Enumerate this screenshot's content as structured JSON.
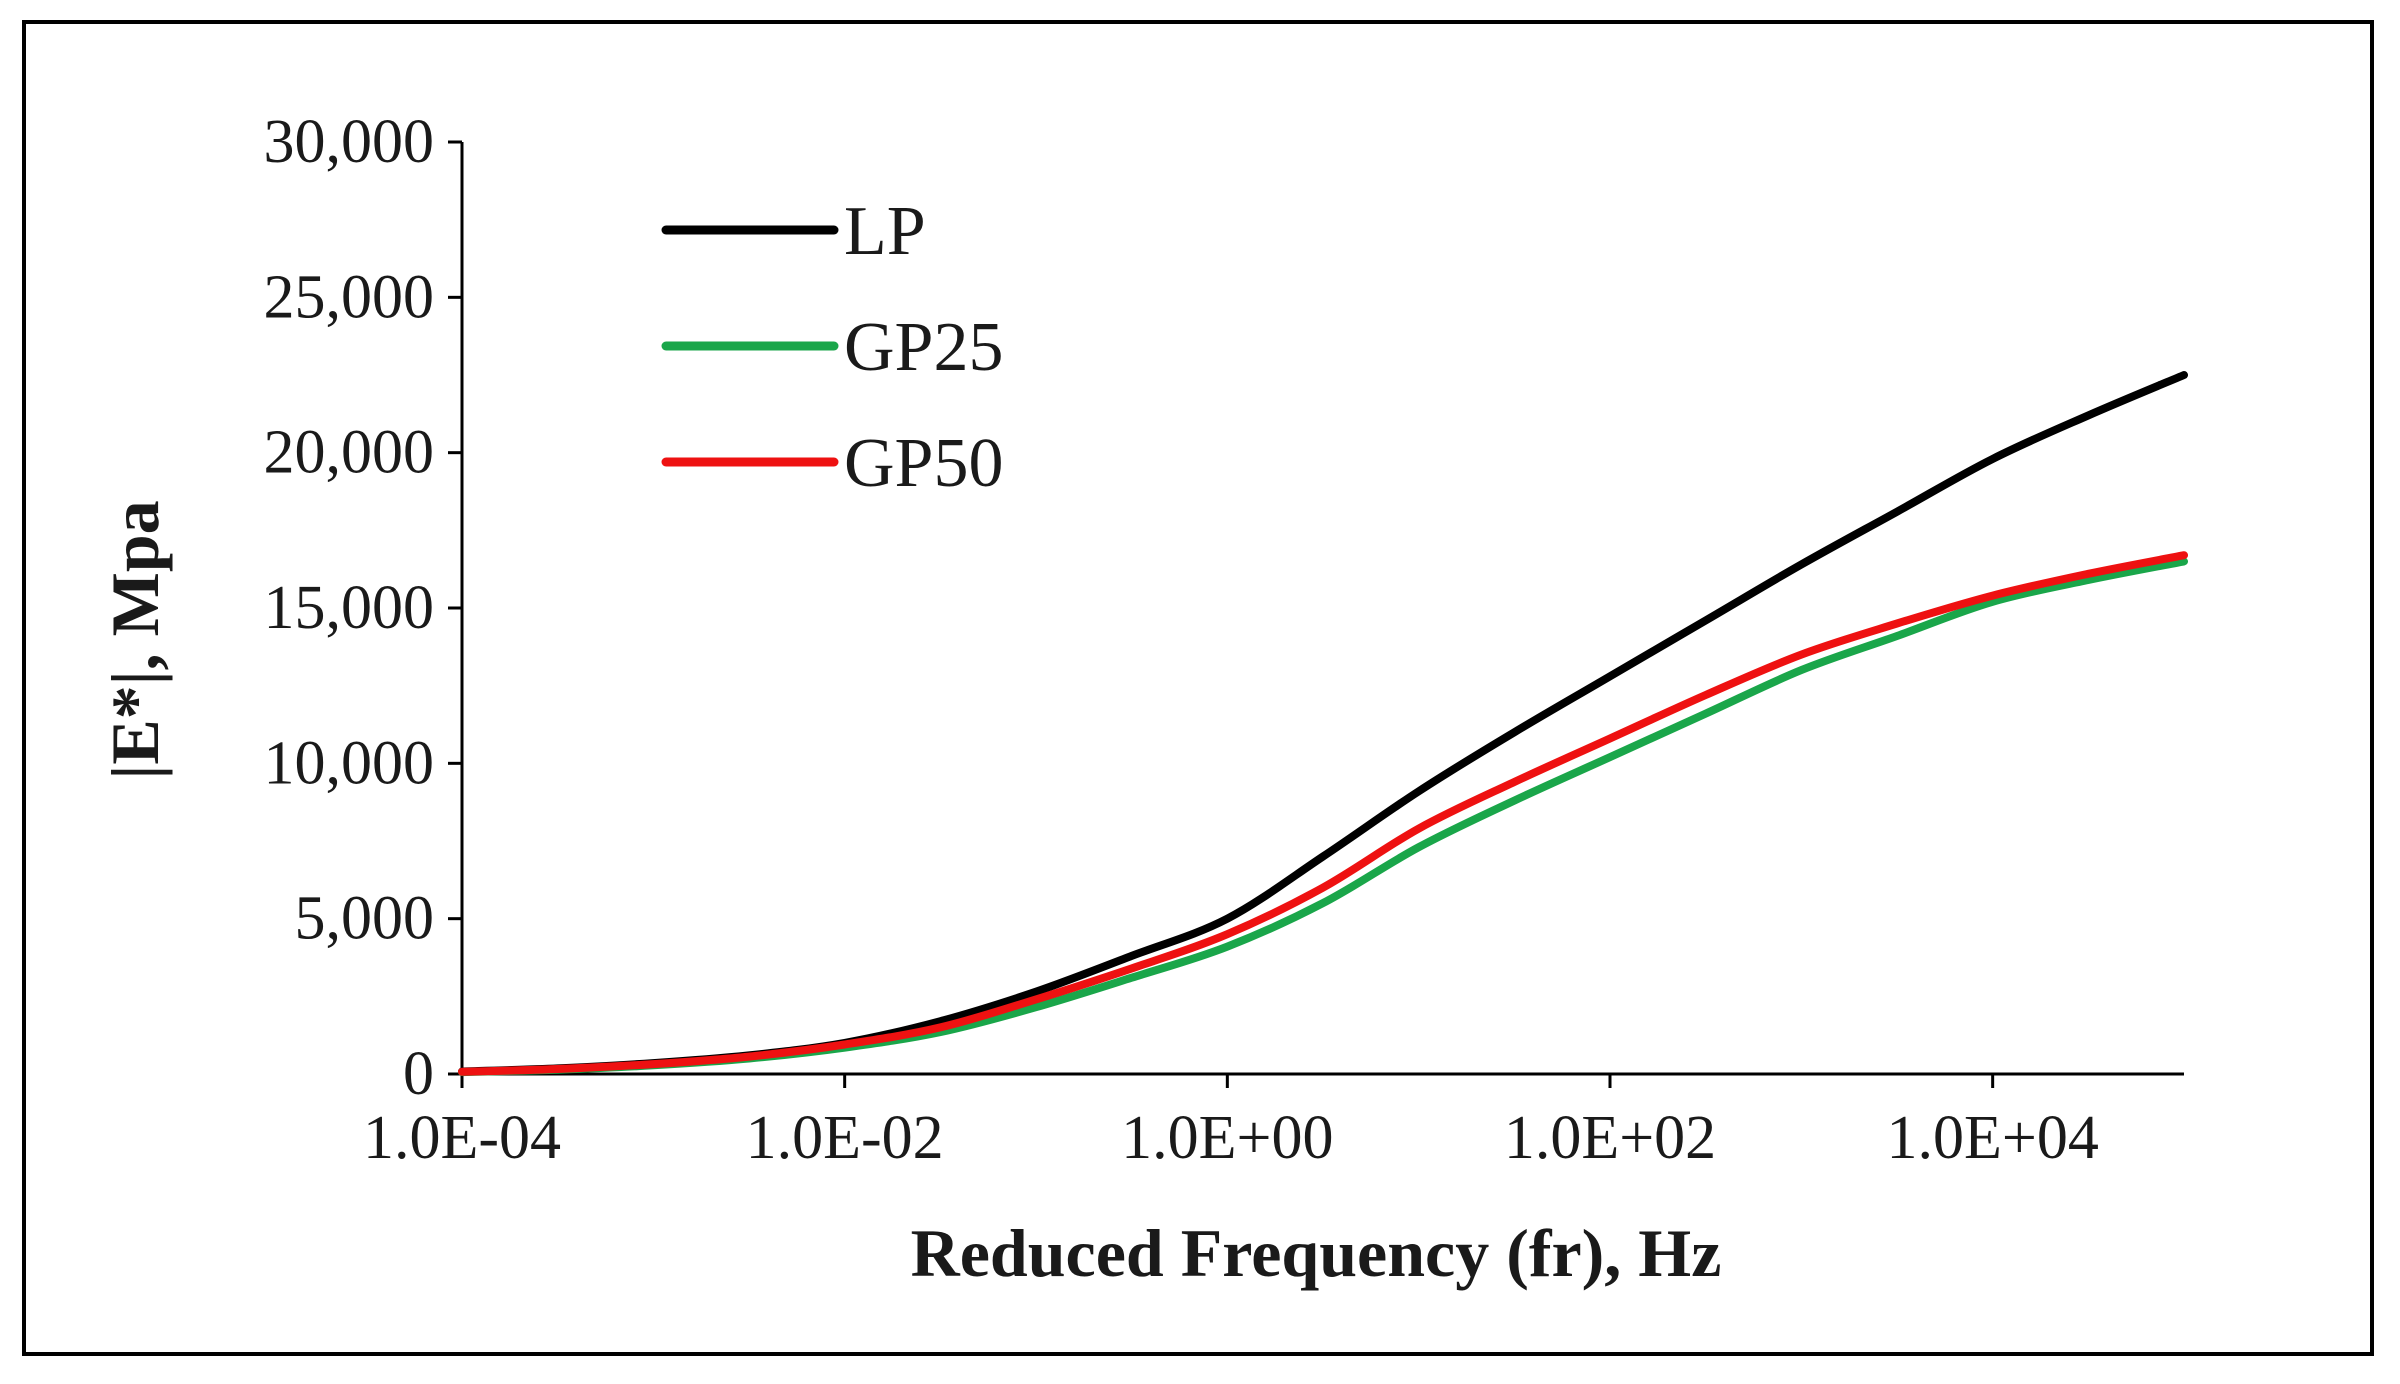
{
  "chart_data": {
    "type": "line",
    "title": "",
    "xlabel": "Reduced Frequency (fr), Hz",
    "ylabel": "|E*|, Mpa",
    "x_scale": "log10",
    "xlim_exp": [
      -4,
      5
    ],
    "ylim": [
      0,
      30000
    ],
    "x_ticks_exp": [
      -4,
      -2,
      0,
      2,
      4
    ],
    "x_tick_labels": [
      "1.0E-04",
      "1.0E-02",
      "1.0E+00",
      "1.0E+02",
      "1.0E+04"
    ],
    "y_ticks": [
      0,
      5000,
      10000,
      15000,
      20000,
      25000,
      30000
    ],
    "y_tick_labels": [
      "0",
      "5,000",
      "10,000",
      "15,000",
      "20,000",
      "25,000",
      "30,000"
    ],
    "grid": false,
    "legend_position": "top-left",
    "x_exp": [
      -4,
      -3.5,
      -3,
      -2.5,
      -2,
      -1.5,
      -1,
      -0.5,
      0,
      0.5,
      1,
      1.5,
      2,
      2.5,
      3,
      3.5,
      4,
      4.5,
      5
    ],
    "series": [
      {
        "name": "LP",
        "color": "#000000",
        "values": [
          80,
          180,
          350,
          600,
          1000,
          1700,
          2650,
          3800,
          5000,
          7000,
          9100,
          11000,
          12800,
          14600,
          16400,
          18100,
          19800,
          21200,
          22500
        ]
      },
      {
        "name": "GP25",
        "color": "#1aa64a",
        "values": [
          60,
          140,
          280,
          500,
          850,
          1350,
          2150,
          3100,
          4100,
          5500,
          7300,
          8800,
          10200,
          11600,
          13000,
          14100,
          15200,
          15900,
          16500
        ]
      },
      {
        "name": "GP50",
        "color": "#ee1111",
        "values": [
          70,
          160,
          320,
          560,
          950,
          1500,
          2400,
          3400,
          4500,
          6000,
          7900,
          9400,
          10800,
          12200,
          13500,
          14500,
          15400,
          16100,
          16700
        ]
      }
    ]
  }
}
